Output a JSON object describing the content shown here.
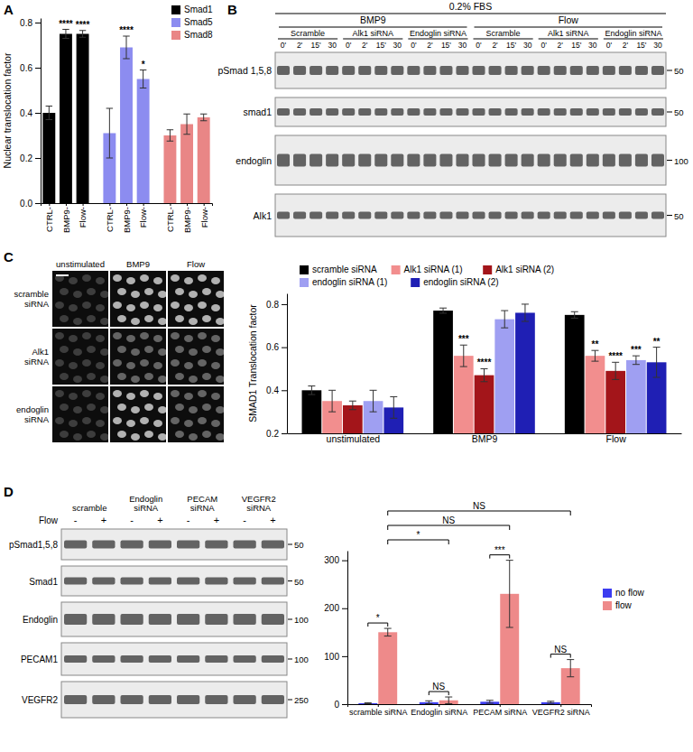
{
  "panels": [
    "A",
    "B",
    "C",
    "D"
  ],
  "chart_data": [
    {
      "type": "bar",
      "y_label": "Nuclear translocation factor",
      "categories": [
        "CTRL-",
        "BMP9-",
        "Flow-",
        "CTRL-",
        "BMP9-",
        "Flow-",
        "CTRL-",
        "BMP9-",
        "Flow-"
      ],
      "series": [
        {
          "name": "Smad1",
          "color": "#000000",
          "values": [
            0.4,
            0.75,
            0.75,
            null,
            null,
            null,
            null,
            null,
            null
          ],
          "errors": [
            0.03,
            0.02,
            0.015,
            null,
            null,
            null,
            null,
            null,
            null
          ],
          "significance": [
            null,
            "****",
            "****",
            null,
            null,
            null,
            null,
            null,
            null
          ]
        },
        {
          "name": "Smad5",
          "color": "#8c8cf0",
          "values": [
            null,
            null,
            null,
            0.31,
            0.69,
            0.55,
            null,
            null,
            null
          ],
          "errors": [
            null,
            null,
            null,
            0.11,
            0.05,
            0.04,
            null,
            null,
            null
          ],
          "significance": [
            null,
            null,
            null,
            null,
            "****",
            "*",
            null,
            null,
            null
          ]
        },
        {
          "name": "Smad8",
          "color": "#e98686",
          "values": [
            null,
            null,
            null,
            null,
            null,
            null,
            0.3,
            0.35,
            0.38
          ],
          "errors": [
            null,
            null,
            null,
            null,
            null,
            null,
            0.025,
            0.045,
            0.015
          ]
        }
      ],
      "ylim": [
        0,
        0.82
      ],
      "yticks": [
        {
          "value": 0,
          "label": "0.0"
        },
        0.2,
        0.4,
        0.6,
        0.8
      ],
      "legend": "top-right"
    },
    {
      "type": "bar",
      "y_label": "SMAD1 Translocation factor",
      "categories": [
        "unstimulated",
        "BMP9",
        "Flow"
      ],
      "series": [
        {
          "name": "scramble siRNA",
          "color": "#000000",
          "values": [
            0.4,
            0.77,
            0.75
          ],
          "errors": [
            0.02,
            0.012,
            0.015
          ]
        },
        {
          "name": "Alk1 siRNA (1)",
          "color": "#f28e8e",
          "values": [
            0.35,
            0.56,
            0.56
          ],
          "errors": [
            0.05,
            0.05,
            0.025
          ],
          "significance": [
            null,
            "***",
            "**"
          ]
        },
        {
          "name": "Alk1 siRNA (2)",
          "color": "#a3151a",
          "values": [
            0.33,
            0.47,
            0.49
          ],
          "errors": [
            0.02,
            0.03,
            0.04
          ],
          "significance": [
            null,
            "****",
            "****"
          ]
        },
        {
          "name": "endoglin siRNA (1)",
          "color": "#9f9ff2",
          "values": [
            0.35,
            0.73,
            0.54
          ],
          "errors": [
            0.05,
            0.04,
            0.02
          ],
          "significance": [
            null,
            null,
            "***"
          ]
        },
        {
          "name": "endoglin siRNA (2)",
          "color": "#1f1fb4",
          "values": [
            0.32,
            0.76,
            0.53
          ],
          "errors": [
            0.05,
            0.04,
            0.07
          ],
          "significance": [
            null,
            null,
            "**"
          ]
        }
      ],
      "ylim": [
        0.2,
        0.85
      ],
      "yticks": [
        0.2,
        0.4,
        0.6,
        0.8
      ],
      "legend": "top"
    },
    {
      "type": "bar",
      "categories": [
        "scramble siRNA",
        "Endoglin siRNA",
        "PECAM siRNA",
        "VEGFR2 siRNA"
      ],
      "series": [
        {
          "name": "no flow",
          "color": "#3c3cf0",
          "values": [
            2,
            4,
            5,
            4
          ],
          "errors": [
            1,
            3,
            3,
            2
          ]
        },
        {
          "name": "flow",
          "color": "#ee8a8a",
          "values": [
            150,
            8,
            230,
            75
          ],
          "errors": [
            8,
            7,
            70,
            18
          ],
          "significance": [
            "*",
            "NS",
            "***",
            "NS"
          ]
        }
      ],
      "comparisons": [
        {
          "label": "*"
        },
        {
          "label": "NS"
        },
        {
          "label": "NS"
        }
      ],
      "ylim": [
        0,
        320
      ],
      "yticks": [
        0,
        100,
        200,
        300
      ],
      "legend": "right"
    }
  ],
  "blot_b": {
    "header": "0.2% FBS",
    "groups": [
      "BMP9",
      "Flow"
    ],
    "subgroups": [
      "Scramble",
      "Alk1 siRNA",
      "Endoglin siRNA",
      "Scramble",
      "Alk1 siRNA",
      "Endoglin siRNA"
    ],
    "times": [
      "0'",
      "2'",
      "15'",
      "30"
    ],
    "rows": [
      {
        "label": "pSmad 1,5,8",
        "marker": 50
      },
      {
        "label": "smad1",
        "marker": 50
      },
      {
        "label": "endoglin",
        "marker": 100
      },
      {
        "label": "Alk1",
        "marker": 50
      }
    ]
  },
  "images_c": {
    "columns": [
      "unstimulated",
      "BMP9",
      "Flow"
    ],
    "rows": [
      "scramble siRNA",
      "Alk1 siRNA",
      "endoglin siRNA"
    ]
  },
  "blot_d": {
    "columns": [
      "scramble",
      "Endoglin siRNA",
      "PECAM siRNA",
      "VEGFR2 siRNA"
    ],
    "row_label": "Flow",
    "conditions": [
      "-",
      "+"
    ],
    "rows": [
      {
        "label": "pSmad1,5,8",
        "marker": 50
      },
      {
        "label": "Smad1",
        "marker": 50
      },
      {
        "label": "Endoglin",
        "marker": 100
      },
      {
        "label": "PECAM1",
        "marker": 100
      },
      {
        "label": "VEGFR2",
        "marker": 250
      }
    ]
  }
}
